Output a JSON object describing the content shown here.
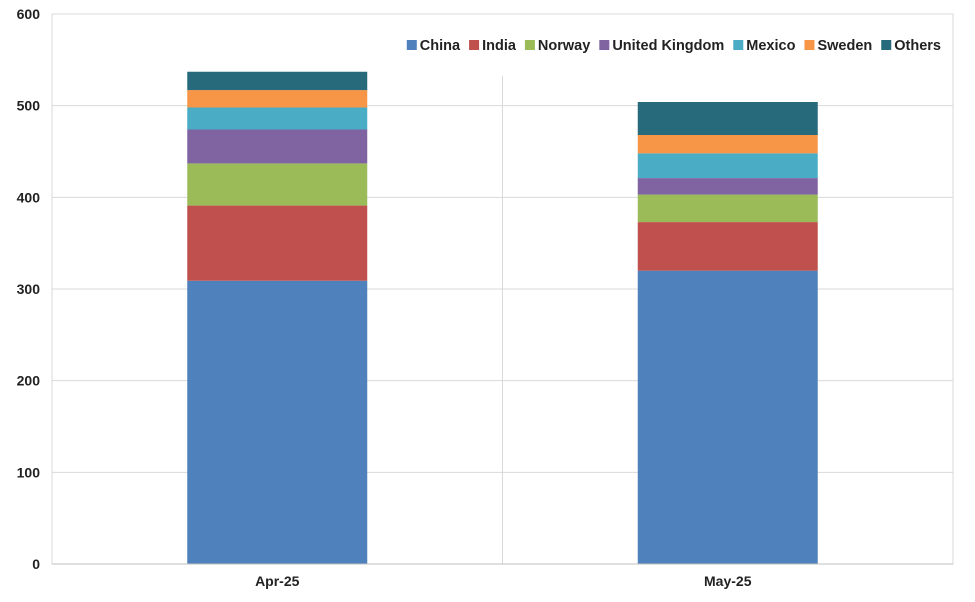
{
  "chart_data": {
    "type": "bar",
    "stacked": true,
    "categories": [
      "Apr-25",
      "May-25"
    ],
    "series": [
      {
        "name": "China",
        "color": "#4F81BD",
        "values": [
          309,
          320
        ]
      },
      {
        "name": "India",
        "color": "#C0504D",
        "values": [
          82,
          53
        ]
      },
      {
        "name": "Norway",
        "color": "#9BBB59",
        "values": [
          46,
          30
        ]
      },
      {
        "name": "United Kingdom",
        "color": "#8064A2",
        "values": [
          37,
          18
        ]
      },
      {
        "name": "Mexico",
        "color": "#4BACC6",
        "values": [
          24,
          27
        ]
      },
      {
        "name": "Sweden",
        "color": "#F79646",
        "values": [
          19,
          20
        ]
      },
      {
        "name": "Others",
        "color": "#276A7C",
        "values": [
          20,
          36
        ]
      }
    ],
    "y_ticks": [
      "0",
      "100",
      "200",
      "300",
      "400",
      "500",
      "600"
    ],
    "ylim": [
      0,
      600
    ],
    "grid": true,
    "legend_position": "top-right",
    "title": "",
    "xlabel": "",
    "ylabel": ""
  }
}
